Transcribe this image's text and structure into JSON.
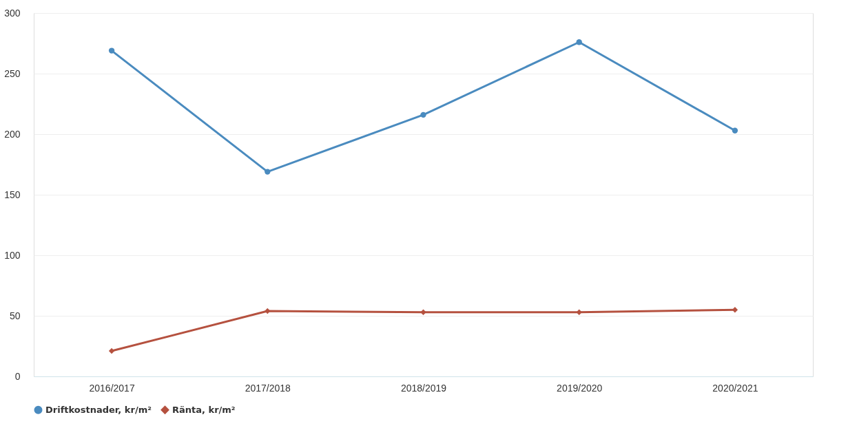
{
  "chart_data": {
    "type": "line",
    "categories": [
      "2016/2017",
      "2017/2018",
      "2018/2019",
      "2019/2020",
      "2020/2021"
    ],
    "series": [
      {
        "name": "Driftkostnader, kr/m²",
        "color": "#4a8bbf",
        "marker": "circle",
        "values": [
          269,
          169,
          216,
          276,
          203
        ]
      },
      {
        "name": "Ränta, kr/m²",
        "color": "#b5513f",
        "marker": "diamond",
        "values": [
          21,
          54,
          53,
          53,
          55
        ]
      }
    ],
    "ylim": [
      0,
      300
    ],
    "yticks": [
      0,
      50,
      100,
      150,
      200,
      250,
      300
    ],
    "grid": "y",
    "legend": "bottom",
    "line_style": "solid"
  }
}
